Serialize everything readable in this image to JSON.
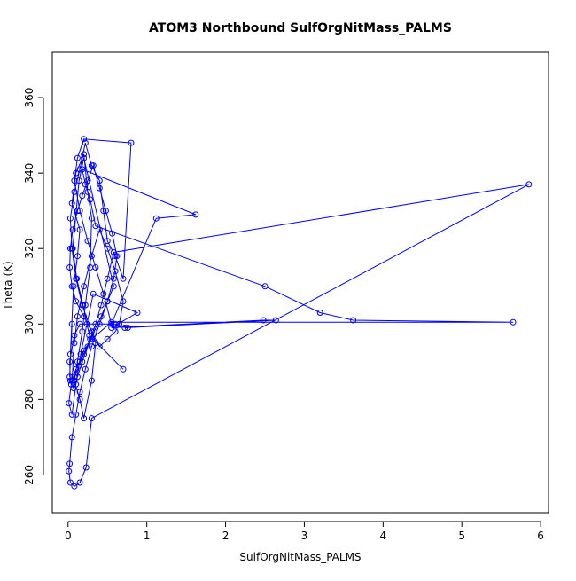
{
  "chart_data": {
    "type": "line",
    "title": "ATOM3 Northbound SulfOrgNitMass_PALMS",
    "xlabel": "SulfOrgNitMass_PALMS",
    "ylabel": "Theta (K)",
    "xlim": [
      -0.2,
      6.1
    ],
    "ylim": [
      250,
      372
    ],
    "x_ticks": [
      0,
      1,
      2,
      3,
      4,
      5,
      6
    ],
    "y_ticks": [
      260,
      280,
      300,
      320,
      340,
      360
    ],
    "x_tick_labels": [
      "0",
      "1",
      "2",
      "3",
      "4",
      "5",
      "6"
    ],
    "y_tick_labels": [
      "260",
      "280",
      "300",
      "320",
      "340",
      "360"
    ],
    "grid": false,
    "legend": "none",
    "markers": "open-circle",
    "color": "#0000ff",
    "series": [
      {
        "x": [
          0.02,
          0.05,
          0.03,
          0.07,
          0.12,
          0.15,
          0.05,
          0.1,
          0.2,
          0.25,
          0.3,
          0.28,
          0.22,
          0.18,
          0.12,
          0.08,
          0.15,
          0.2,
          0.3,
          0.35,
          0.18,
          0.1,
          0.05,
          0.03,
          0.08,
          0.15,
          0.22,
          0.3,
          0.4,
          0.45,
          0.5,
          0.6,
          0.7,
          0.8,
          0.2,
          0.12,
          0.08,
          0.15,
          0.25,
          0.35,
          0.45,
          0.55,
          1.12,
          1.62,
          0.18,
          0.22,
          0.28,
          0.35,
          2.5,
          3.2,
          3.62,
          5.65,
          0.55,
          0.3,
          0.2,
          0.15,
          0.1,
          0.05,
          0.08,
          0.12,
          0.2,
          0.3,
          0.4,
          0.5,
          0.6,
          0.7,
          0.65,
          0.6,
          0.5,
          0.4,
          0.3,
          0.2,
          0.1,
          0.05,
          0.02,
          0.03,
          0.06,
          0.12,
          0.18,
          0.25,
          0.32,
          0.4,
          0.48,
          0.56,
          0.62,
          0.58,
          0.5,
          0.4,
          0.3,
          0.22,
          0.15,
          0.1,
          0.05,
          0.02,
          0.01,
          0.03,
          0.08,
          0.15,
          0.23,
          0.3,
          5.85,
          0.58,
          0.5,
          0.42,
          0.35,
          0.28,
          0.2,
          0.14,
          0.08,
          0.04,
          0.01,
          0.05,
          0.1,
          0.16,
          0.24,
          0.32,
          0.88,
          0.55,
          2.48,
          2.64,
          0.72,
          0.76,
          0.6,
          0.15,
          0.08,
          0.02,
          0.03,
          0.07,
          0.12,
          0.18,
          0.25,
          0.33,
          0.42,
          0.5,
          0.58,
          0.2,
          0.14,
          0.06,
          0.11,
          0.19,
          0.27,
          0.7
        ],
        "y": [
          286,
          300,
          292,
          310,
          318,
          325,
          332,
          340,
          345,
          335,
          328,
          315,
          305,
          298,
          290,
          285,
          280,
          275,
          285,
          295,
          305,
          312,
          320,
          328,
          335,
          341,
          348,
          342,
          338,
          330,
          322,
          318,
          312,
          348,
          349,
          344,
          338,
          330,
          322,
          315,
          308,
          300,
          328,
          329,
          341,
          337,
          333,
          326,
          310,
          303,
          301,
          300.5,
          300.5,
          296,
          293,
          290,
          288,
          285,
          295,
          302,
          310,
          318,
          325,
          320,
          314,
          306,
          300,
          298,
          296,
          294,
          298,
          302,
          306,
          310,
          315,
          320,
          325,
          330,
          334,
          338,
          342,
          336,
          330,
          324,
          318,
          312,
          306,
          300,
          294,
          288,
          282,
          276,
          270,
          263,
          261,
          258,
          257,
          258,
          262,
          275,
          337,
          319,
          312,
          305,
          300,
          296,
          292,
          289,
          286,
          284,
          279,
          276,
          284,
          292,
          300,
          308,
          303,
          299,
          301,
          301,
          299,
          299,
          300,
          300,
          297,
          290,
          285,
          283,
          286,
          290,
          294,
          298,
          302,
          306,
          310,
          344,
          338,
          320,
          312,
          305,
          297,
          288
        ]
      }
    ]
  }
}
